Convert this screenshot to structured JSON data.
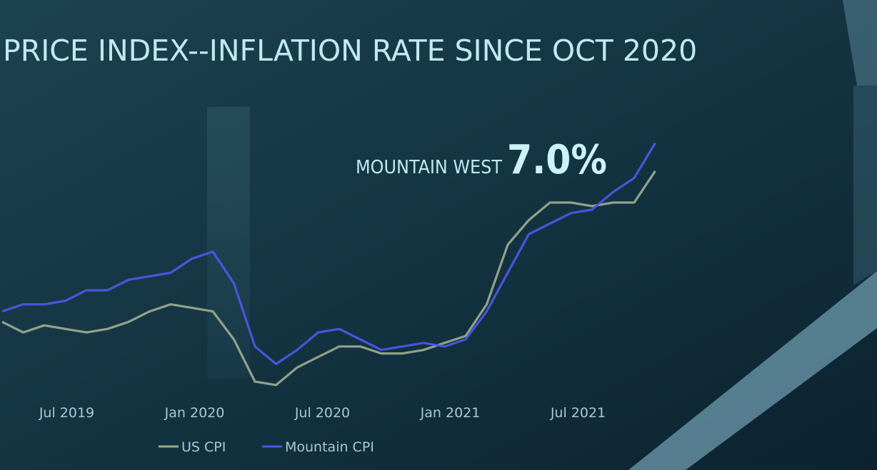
{
  "chart_data": {
    "type": "line",
    "title": "PRICE INDEX--INFLATION RATE SINCE OCT 2020",
    "annotations": [
      "MOUNTAIN WEST",
      "7.0%"
    ],
    "x": [
      "2019-04",
      "2019-05",
      "2019-06",
      "2019-07",
      "2019-08",
      "2019-09",
      "2019-10",
      "2019-11",
      "2019-12",
      "2020-01",
      "2020-02",
      "2020-03",
      "2020-04",
      "2020-05",
      "2020-06",
      "2020-07",
      "2020-08",
      "2020-09",
      "2020-10",
      "2020-11",
      "2020-12",
      "2021-01",
      "2021-02",
      "2021-03",
      "2021-04",
      "2021-05",
      "2021-06",
      "2021-07",
      "2021-08",
      "2021-09",
      "2021-10",
      "2021-11"
    ],
    "xticks": [
      {
        "value": "2019-07",
        "label": "Jul 2019"
      },
      {
        "value": "2020-01",
        "label": "Jan 2020"
      },
      {
        "value": "2020-07",
        "label": "Jul 2020"
      },
      {
        "value": "2021-01",
        "label": "Jan 2021"
      },
      {
        "value": "2021-07",
        "label": "Jul 2021"
      }
    ],
    "ylim": [
      -1,
      9
    ],
    "series": [
      {
        "name": "US CPI",
        "color": "#9aa88f",
        "values": [
          1.9,
          1.6,
          1.8,
          1.7,
          1.6,
          1.7,
          1.9,
          2.2,
          2.4,
          2.3,
          2.2,
          1.4,
          0.2,
          0.1,
          0.6,
          0.9,
          1.2,
          1.2,
          1.0,
          1.0,
          1.1,
          1.3,
          1.5,
          2.4,
          4.1,
          4.8,
          5.3,
          5.3,
          5.2,
          5.3,
          5.3,
          6.2
        ]
      },
      {
        "name": "Mountain CPI",
        "color": "#4c57e6",
        "values": [
          2.2,
          2.4,
          2.4,
          2.5,
          2.8,
          2.8,
          3.1,
          3.2,
          3.3,
          3.7,
          3.9,
          3.0,
          1.2,
          0.7,
          1.1,
          1.6,
          1.7,
          1.4,
          1.1,
          1.2,
          1.3,
          1.2,
          1.4,
          2.2,
          3.3,
          4.4,
          4.7,
          5.0,
          5.1,
          5.6,
          6.0,
          7.0
        ]
      }
    ],
    "legend": "bottom"
  }
}
